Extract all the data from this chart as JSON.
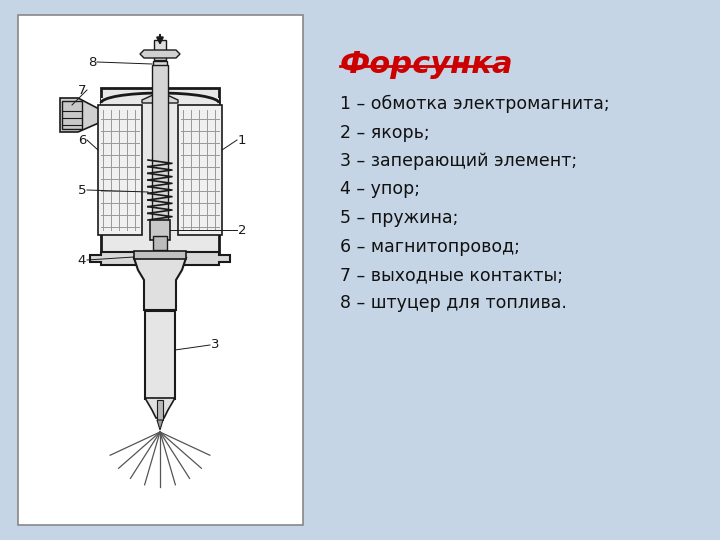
{
  "title": "Форсунка",
  "title_color": "#cc0000",
  "background_color": "#c5d5e5",
  "labels": [
    "1 – обмотка электромагнита;",
    "2 – якорь;",
    "3 – заперающий элемент;",
    "4 – упор;",
    "5 – пружина;",
    "6 – магнитопровод;",
    "7 – выходные контакты;",
    "8 – штуцер для топлива."
  ],
  "text_color": "#111111",
  "label_fontsize": 12.5,
  "title_fontsize": 22,
  "fig_width": 7.2,
  "fig_height": 5.4,
  "dpi": 100
}
